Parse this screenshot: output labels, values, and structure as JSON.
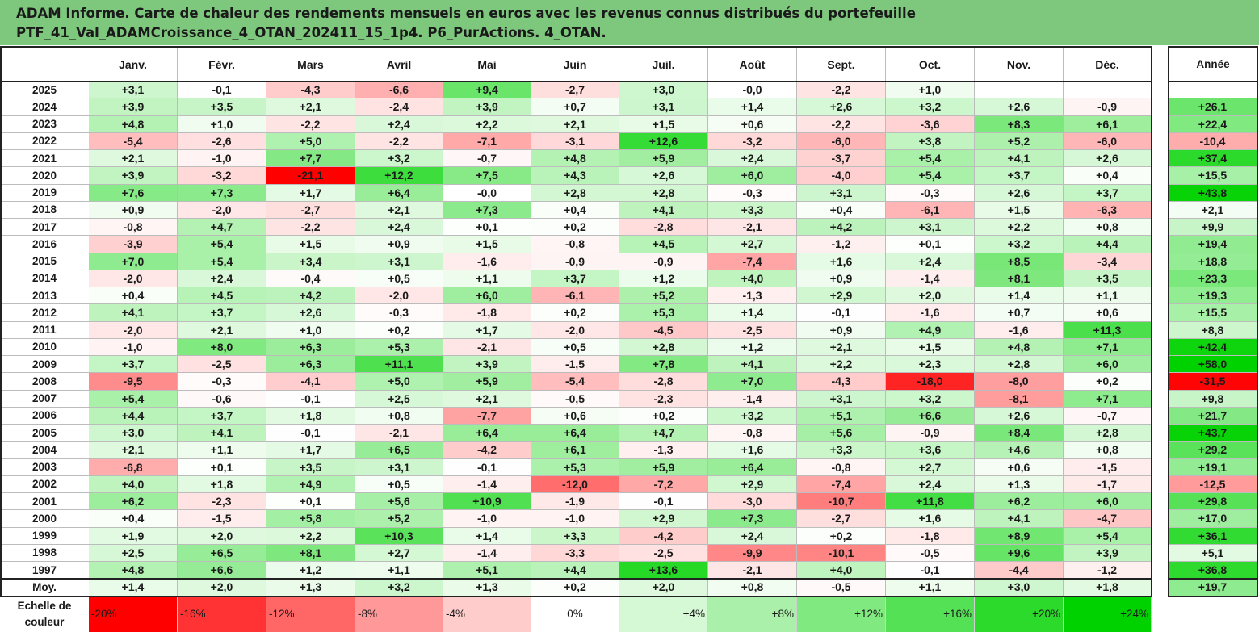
{
  "header": {
    "line1": "ADAM Informe. Carte de chaleur des rendements mensuels en euros avec les revenus connus distribués du portefeuille",
    "line2": "PTF_41_Val_ADAMCroissance_4_OTAN_202411_15_1p4. P6_PurActions. 4_OTAN."
  },
  "colors": {
    "header_bg": "#7ec87e",
    "negative_max": "#ff0000",
    "positive_max": "#00d200",
    "neutral": "#ffffff"
  },
  "chart_data": {
    "type": "heatmap",
    "title": "ADAM Informe. Carte de chaleur des rendements mensuels en euros avec les revenus connus distribués du portefeuille",
    "subtitle": "PTF_41_Val_ADAMCroissance_4_OTAN_202411_15_1p4. P6_PurActions. 4_OTAN.",
    "months": [
      "Janv.",
      "Févr.",
      "Mars",
      "Avril",
      "Mai",
      "Juin",
      "Juil.",
      "Août",
      "Sept.",
      "Oct.",
      "Nov.",
      "Déc."
    ],
    "year_header": "Année",
    "years": [
      "2025",
      "2024",
      "2023",
      "2022",
      "2021",
      "2020",
      "2019",
      "2018",
      "2017",
      "2016",
      "2015",
      "2014",
      "2013",
      "2012",
      "2011",
      "2010",
      "2009",
      "2008",
      "2007",
      "2006",
      "2005",
      "2004",
      "2003",
      "2002",
      "2001",
      "2000",
      "1999",
      "1998",
      "1997"
    ],
    "values": [
      [
        "+3,1",
        "-0,1",
        "-4,3",
        "-6,6",
        "+9,4",
        "-2,7",
        "+3,0",
        "-0,0",
        "-2,2",
        "+1,0",
        "",
        ""
      ],
      [
        "+3,9",
        "+3,5",
        "+2,1",
        "-2,4",
        "+3,9",
        "+0,7",
        "+3,1",
        "+1,4",
        "+2,6",
        "+3,2",
        "+2,6",
        "-0,9"
      ],
      [
        "+4,8",
        "+1,0",
        "-2,2",
        "+2,4",
        "+2,2",
        "+2,1",
        "+1,5",
        "+0,6",
        "-2,2",
        "-3,6",
        "+8,3",
        "+6,1"
      ],
      [
        "-5,4",
        "-2,6",
        "+5,0",
        "-2,2",
        "-7,1",
        "-3,1",
        "+12,6",
        "-3,2",
        "-6,0",
        "+3,8",
        "+5,2",
        "-6,0"
      ],
      [
        "+2,1",
        "-1,0",
        "+7,7",
        "+3,2",
        "-0,7",
        "+4,8",
        "+5,9",
        "+2,4",
        "-3,7",
        "+5,4",
        "+4,1",
        "+2,6"
      ],
      [
        "+3,9",
        "-3,2",
        "-21,1",
        "+12,2",
        "+7,5",
        "+4,3",
        "+2,6",
        "+6,0",
        "-4,0",
        "+5,4",
        "+3,7",
        "+0,4"
      ],
      [
        "+7,6",
        "+7,3",
        "+1,7",
        "+6,4",
        "-0,0",
        "+2,8",
        "+2,8",
        "-0,3",
        "+3,1",
        "-0,3",
        "+2,6",
        "+3,7"
      ],
      [
        "+0,9",
        "-2,0",
        "-2,7",
        "+2,1",
        "+7,3",
        "+0,4",
        "+4,1",
        "+3,3",
        "+0,4",
        "-6,1",
        "+1,5",
        "-6,3"
      ],
      [
        "-0,8",
        "+4,7",
        "-2,2",
        "+2,4",
        "+0,1",
        "+0,2",
        "-2,8",
        "-2,1",
        "+4,2",
        "+3,1",
        "+2,2",
        "+0,8"
      ],
      [
        "-3,9",
        "+5,4",
        "+1,5",
        "+0,9",
        "+1,5",
        "-0,8",
        "+4,5",
        "+2,7",
        "-1,2",
        "+0,1",
        "+3,2",
        "+4,4"
      ],
      [
        "+7,0",
        "+5,4",
        "+3,4",
        "+3,1",
        "-1,6",
        "-0,9",
        "-0,9",
        "-7,4",
        "+1,6",
        "+2,4",
        "+8,5",
        "-3,4"
      ],
      [
        "-2,0",
        "+2,4",
        "-0,4",
        "+0,5",
        "+1,1",
        "+3,7",
        "+1,2",
        "+4,0",
        "+0,9",
        "-1,4",
        "+8,1",
        "+3,5"
      ],
      [
        "+0,4",
        "+4,5",
        "+4,2",
        "-2,0",
        "+6,0",
        "-6,1",
        "+5,2",
        "-1,3",
        "+2,9",
        "+2,0",
        "+1,4",
        "+1,1"
      ],
      [
        "+4,1",
        "+3,7",
        "+2,6",
        "-0,3",
        "-1,8",
        "+0,2",
        "+5,3",
        "+1,4",
        "-0,1",
        "-1,6",
        "+0,7",
        "+0,6"
      ],
      [
        "-2,0",
        "+2,1",
        "+1,0",
        "+0,2",
        "+1,7",
        "-2,0",
        "-4,5",
        "-2,5",
        "+0,9",
        "+4,9",
        "-1,6",
        "+11,3"
      ],
      [
        "-1,0",
        "+8,0",
        "+6,3",
        "+5,3",
        "-2,1",
        "+0,5",
        "+2,8",
        "+1,2",
        "+2,1",
        "+1,5",
        "+4,8",
        "+7,1"
      ],
      [
        "+3,7",
        "-2,5",
        "+6,3",
        "+11,1",
        "+3,9",
        "-1,5",
        "+7,8",
        "+4,1",
        "+2,2",
        "+2,3",
        "+2,8",
        "+6,0"
      ],
      [
        "-9,5",
        "-0,3",
        "-4,1",
        "+5,0",
        "+5,9",
        "-5,4",
        "-2,8",
        "+7,0",
        "-4,3",
        "-18,0",
        "-8,0",
        "+0,2"
      ],
      [
        "+5,4",
        "-0,6",
        "-0,1",
        "+2,5",
        "+2,1",
        "-0,5",
        "-2,3",
        "-1,4",
        "+3,1",
        "+3,2",
        "-8,1",
        "+7,1"
      ],
      [
        "+4,4",
        "+3,7",
        "+1,8",
        "+0,8",
        "-7,7",
        "+0,6",
        "+0,2",
        "+3,2",
        "+5,1",
        "+6,6",
        "+2,6",
        "-0,7"
      ],
      [
        "+3,0",
        "+4,1",
        "-0,1",
        "-2,1",
        "+6,4",
        "+6,4",
        "+4,7",
        "-0,8",
        "+5,6",
        "-0,9",
        "+8,4",
        "+2,8"
      ],
      [
        "+2,1",
        "+1,1",
        "+1,7",
        "+6,5",
        "-4,2",
        "+6,1",
        "-1,3",
        "+1,6",
        "+3,3",
        "+3,6",
        "+4,6",
        "+0,8"
      ],
      [
        "-6,8",
        "+0,1",
        "+3,5",
        "+3,1",
        "-0,1",
        "+5,3",
        "+5,9",
        "+6,4",
        "-0,8",
        "+2,7",
        "+0,6",
        "-1,5"
      ],
      [
        "+4,0",
        "+1,8",
        "+4,9",
        "+0,5",
        "-1,4",
        "-12,0",
        "-7,2",
        "+2,9",
        "-7,4",
        "+2,4",
        "+1,3",
        "-1,7"
      ],
      [
        "+6,2",
        "-2,3",
        "+0,1",
        "+5,6",
        "+10,9",
        "-1,9",
        "-0,1",
        "-3,0",
        "-10,7",
        "+11,8",
        "+6,2",
        "+6,0"
      ],
      [
        "+0,4",
        "-1,5",
        "+5,8",
        "+5,2",
        "-1,0",
        "-1,0",
        "+2,9",
        "+7,3",
        "-2,7",
        "+1,6",
        "+4,1",
        "-4,7"
      ],
      [
        "+1,9",
        "+2,0",
        "+2,2",
        "+10,3",
        "+1,4",
        "+3,3",
        "-4,2",
        "+2,4",
        "+0,2",
        "-1,8",
        "+8,9",
        "+5,4"
      ],
      [
        "+2,5",
        "+6,5",
        "+8,1",
        "+2,7",
        "-1,4",
        "-3,3",
        "-2,5",
        "-9,9",
        "-10,1",
        "-0,5",
        "+9,6",
        "+3,9"
      ],
      [
        "+4,8",
        "+6,6",
        "+1,2",
        "+1,1",
        "+5,1",
        "+4,4",
        "+13,6",
        "-2,1",
        "+4,0",
        "-0,1",
        "-4,4",
        "-1,2"
      ]
    ],
    "annual": [
      "",
      "+26,1",
      "+22,4",
      "-10,4",
      "+37,4",
      "+15,5",
      "+43,8",
      "+2,1",
      "+9,9",
      "+19,4",
      "+18,8",
      "+23,3",
      "+19,3",
      "+15,5",
      "+8,8",
      "+42,4",
      "+58,0",
      "-31,5",
      "+9,8",
      "+21,7",
      "+43,7",
      "+29,2",
      "+19,1",
      "-12,5",
      "+29,8",
      "+17,0",
      "+36,1",
      "+5,1",
      "+36,8"
    ],
    "average_label": "Moy.",
    "average": [
      "+1,4",
      "+2,0",
      "+1,3",
      "+3,2",
      "+1,3",
      "+0,2",
      "+2,0",
      "+0,8",
      "-0,5",
      "+1,1",
      "+3,0",
      "+1,8"
    ],
    "average_annual": "+19,7",
    "scale_label": [
      "Echelle de",
      "couleur"
    ],
    "scale": [
      "-20%",
      "-16%",
      "-12%",
      "-8%",
      "-4%",
      "0%",
      "+4%",
      "+8%",
      "+12%",
      "+16%",
      "+20%",
      "+24%"
    ]
  }
}
